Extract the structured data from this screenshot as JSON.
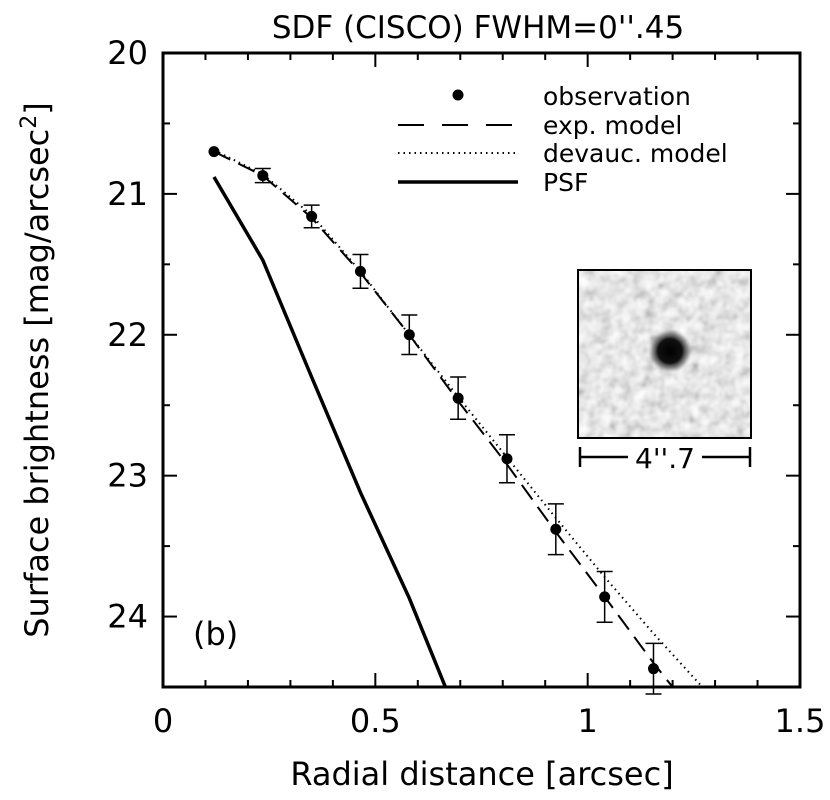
{
  "chart_data": {
    "type": "scatter",
    "title": "SDF (CISCO) FWHM=0''.45",
    "xlabel": "Radial distance [arcsec]",
    "ylabel_main": "Surface brightness [mag/arcsec",
    "ylabel_sup": "2",
    "ylabel_tail": "]",
    "panel_label": "(b)",
    "xlim": [
      0,
      1.5
    ],
    "ylim": [
      24.5,
      20
    ],
    "y_inverted": true,
    "x_ticks": [
      {
        "value": 0,
        "label": "0"
      },
      {
        "value": 0.5,
        "label": "0.5"
      },
      {
        "value": 1,
        "label": "1"
      },
      {
        "value": 1.5,
        "label": "1.5"
      }
    ],
    "y_ticks": [
      {
        "value": 20,
        "label": "20"
      },
      {
        "value": 21,
        "label": "21"
      },
      {
        "value": 22,
        "label": "22"
      },
      {
        "value": 23,
        "label": "23"
      },
      {
        "value": 24,
        "label": "24"
      }
    ],
    "legend_position": "top-right",
    "series": [
      {
        "name": "observation",
        "style": "points-with-errorbars",
        "x": [
          0.12,
          0.235,
          0.35,
          0.465,
          0.58,
          0.695,
          0.81,
          0.925,
          1.04,
          1.155
        ],
        "y": [
          20.7,
          20.87,
          21.16,
          21.55,
          22.0,
          22.45,
          22.88,
          23.38,
          23.86,
          24.37
        ],
        "err": [
          0.02,
          0.05,
          0.08,
          0.12,
          0.14,
          0.15,
          0.17,
          0.18,
          0.18,
          0.18
        ]
      },
      {
        "name": "exp. model",
        "style": "dashed",
        "x": [
          0.12,
          0.235,
          0.35,
          0.465,
          0.58,
          0.695,
          0.81,
          0.925,
          1.04,
          1.155,
          1.2
        ],
        "y": [
          20.7,
          20.87,
          21.17,
          21.56,
          22.0,
          22.47,
          22.92,
          23.4,
          23.86,
          24.33,
          24.5
        ]
      },
      {
        "name": "devauc. model",
        "style": "dotted",
        "x": [
          0.12,
          0.235,
          0.35,
          0.465,
          0.58,
          0.695,
          0.81,
          0.925,
          1.04,
          1.155,
          1.27
        ],
        "y": [
          20.69,
          20.86,
          21.15,
          21.55,
          22.0,
          22.44,
          22.87,
          23.3,
          23.72,
          24.12,
          24.5
        ]
      },
      {
        "name": "PSF",
        "style": "solid",
        "x": [
          0.12,
          0.235,
          0.35,
          0.465,
          0.58,
          0.665
        ],
        "y": [
          20.88,
          21.47,
          22.3,
          23.12,
          23.87,
          24.5
        ]
      }
    ],
    "inset": {
      "scale_label": "4''.7"
    },
    "colors": {
      "axis": "#000000",
      "background": "#ffffff"
    }
  }
}
